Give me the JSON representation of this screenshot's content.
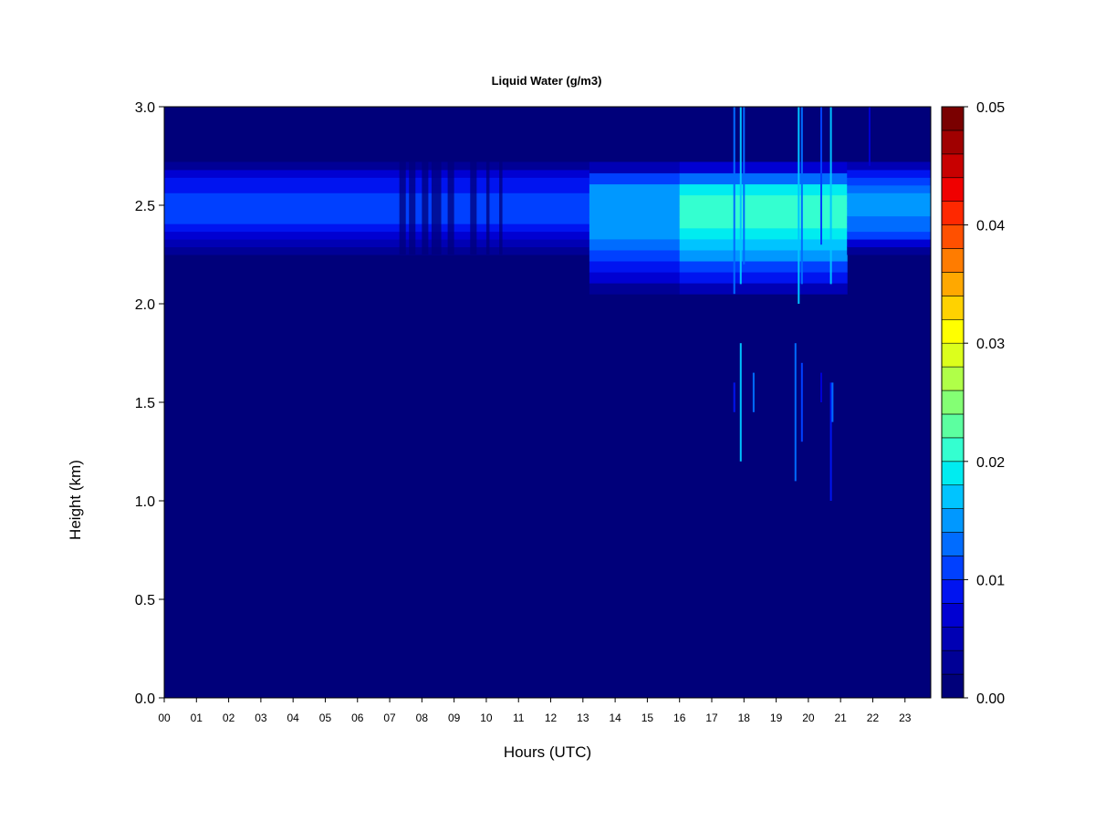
{
  "chart_data": {
    "type": "heatmap",
    "title": "Liquid Water (g/m3)",
    "xlabel": "Hours (UTC)",
    "ylabel": "Height (km)",
    "x_ticks": [
      "00",
      "01",
      "02",
      "03",
      "04",
      "05",
      "06",
      "07",
      "08",
      "09",
      "10",
      "11",
      "12",
      "13",
      "14",
      "15",
      "16",
      "17",
      "18",
      "19",
      "20",
      "21",
      "22",
      "23"
    ],
    "y_ticks": [
      "0.0",
      "0.5",
      "1.0",
      "1.5",
      "2.0",
      "2.5",
      "3.0"
    ],
    "xlim": [
      0,
      23.8
    ],
    "ylim": [
      0,
      3.0
    ],
    "colorbar": {
      "min": 0,
      "max": 0.05,
      "ticks": [
        "0.00",
        "0.01",
        "0.02",
        "0.03",
        "0.04",
        "0.05"
      ],
      "colors": [
        "#00007a",
        "#000096",
        "#0000b4",
        "#0000d2",
        "#0014f0",
        "#0040ff",
        "#006cff",
        "#0098ff",
        "#00c4ff",
        "#00ecf0",
        "#34ffd0",
        "#5cffa0",
        "#84ff74",
        "#b0ff48",
        "#dcff1c",
        "#ffff00",
        "#ffd200",
        "#ffa800",
        "#ff7c00",
        "#ff5000",
        "#ff2800",
        "#f00000",
        "#c80000",
        "#a00000",
        "#7a0000"
      ]
    },
    "background_value": 0.0,
    "layers": [
      {
        "x_start": 0.0,
        "x_end": 13.2,
        "y_bottom": 2.25,
        "y_top": 2.72,
        "peak_height": 2.5,
        "peak_value": 0.009
      },
      {
        "x_start": 13.2,
        "x_end": 16.0,
        "y_bottom": 2.05,
        "y_top": 2.72,
        "peak_height": 2.5,
        "peak_value": 0.014
      },
      {
        "x_start": 16.0,
        "x_end": 21.2,
        "y_bottom": 2.05,
        "y_top": 2.72,
        "peak_height": 2.5,
        "peak_value": 0.019
      },
      {
        "x_start": 21.2,
        "x_end": 23.8,
        "y_bottom": 2.25,
        "y_top": 2.72,
        "peak_height": 2.5,
        "peak_value": 0.013
      }
    ],
    "gaps": [
      {
        "x_start": 7.3,
        "x_end": 7.5
      },
      {
        "x_start": 7.6,
        "x_end": 7.8
      },
      {
        "x_start": 8.0,
        "x_end": 8.2
      },
      {
        "x_start": 8.3,
        "x_end": 8.6
      },
      {
        "x_start": 8.8,
        "x_end": 9.0
      },
      {
        "x_start": 9.5,
        "x_end": 9.7
      },
      {
        "x_start": 10.0,
        "x_end": 10.1
      },
      {
        "x_start": 10.4,
        "x_end": 10.5
      }
    ],
    "spikes": [
      {
        "x": 17.7,
        "y_bottom": 2.05,
        "y_top": 3.0,
        "value": 0.012
      },
      {
        "x": 17.9,
        "y_bottom": 2.1,
        "y_top": 3.0,
        "value": 0.018
      },
      {
        "x": 18.0,
        "y_bottom": 2.2,
        "y_top": 3.0,
        "value": 0.014
      },
      {
        "x": 19.7,
        "y_bottom": 2.0,
        "y_top": 3.0,
        "value": 0.018
      },
      {
        "x": 19.8,
        "y_bottom": 2.1,
        "y_top": 3.0,
        "value": 0.014
      },
      {
        "x": 20.4,
        "y_bottom": 2.3,
        "y_top": 3.0,
        "value": 0.011
      },
      {
        "x": 20.7,
        "y_bottom": 2.1,
        "y_top": 3.0,
        "value": 0.016
      },
      {
        "x": 21.9,
        "y_bottom": 2.7,
        "y_top": 3.0,
        "value": 0.006
      },
      {
        "x": 17.7,
        "y_bottom": 1.45,
        "y_top": 1.6,
        "value": 0.008
      },
      {
        "x": 17.9,
        "y_bottom": 1.2,
        "y_top": 1.8,
        "value": 0.016
      },
      {
        "x": 18.3,
        "y_bottom": 1.45,
        "y_top": 1.65,
        "value": 0.012
      },
      {
        "x": 19.6,
        "y_bottom": 1.1,
        "y_top": 1.8,
        "value": 0.014
      },
      {
        "x": 19.8,
        "y_bottom": 1.3,
        "y_top": 1.7,
        "value": 0.01
      },
      {
        "x": 20.4,
        "y_bottom": 1.5,
        "y_top": 1.65,
        "value": 0.007
      },
      {
        "x": 20.7,
        "y_bottom": 1.0,
        "y_top": 1.6,
        "value": 0.009
      },
      {
        "x": 20.75,
        "y_bottom": 1.4,
        "y_top": 1.6,
        "value": 0.014
      }
    ]
  }
}
